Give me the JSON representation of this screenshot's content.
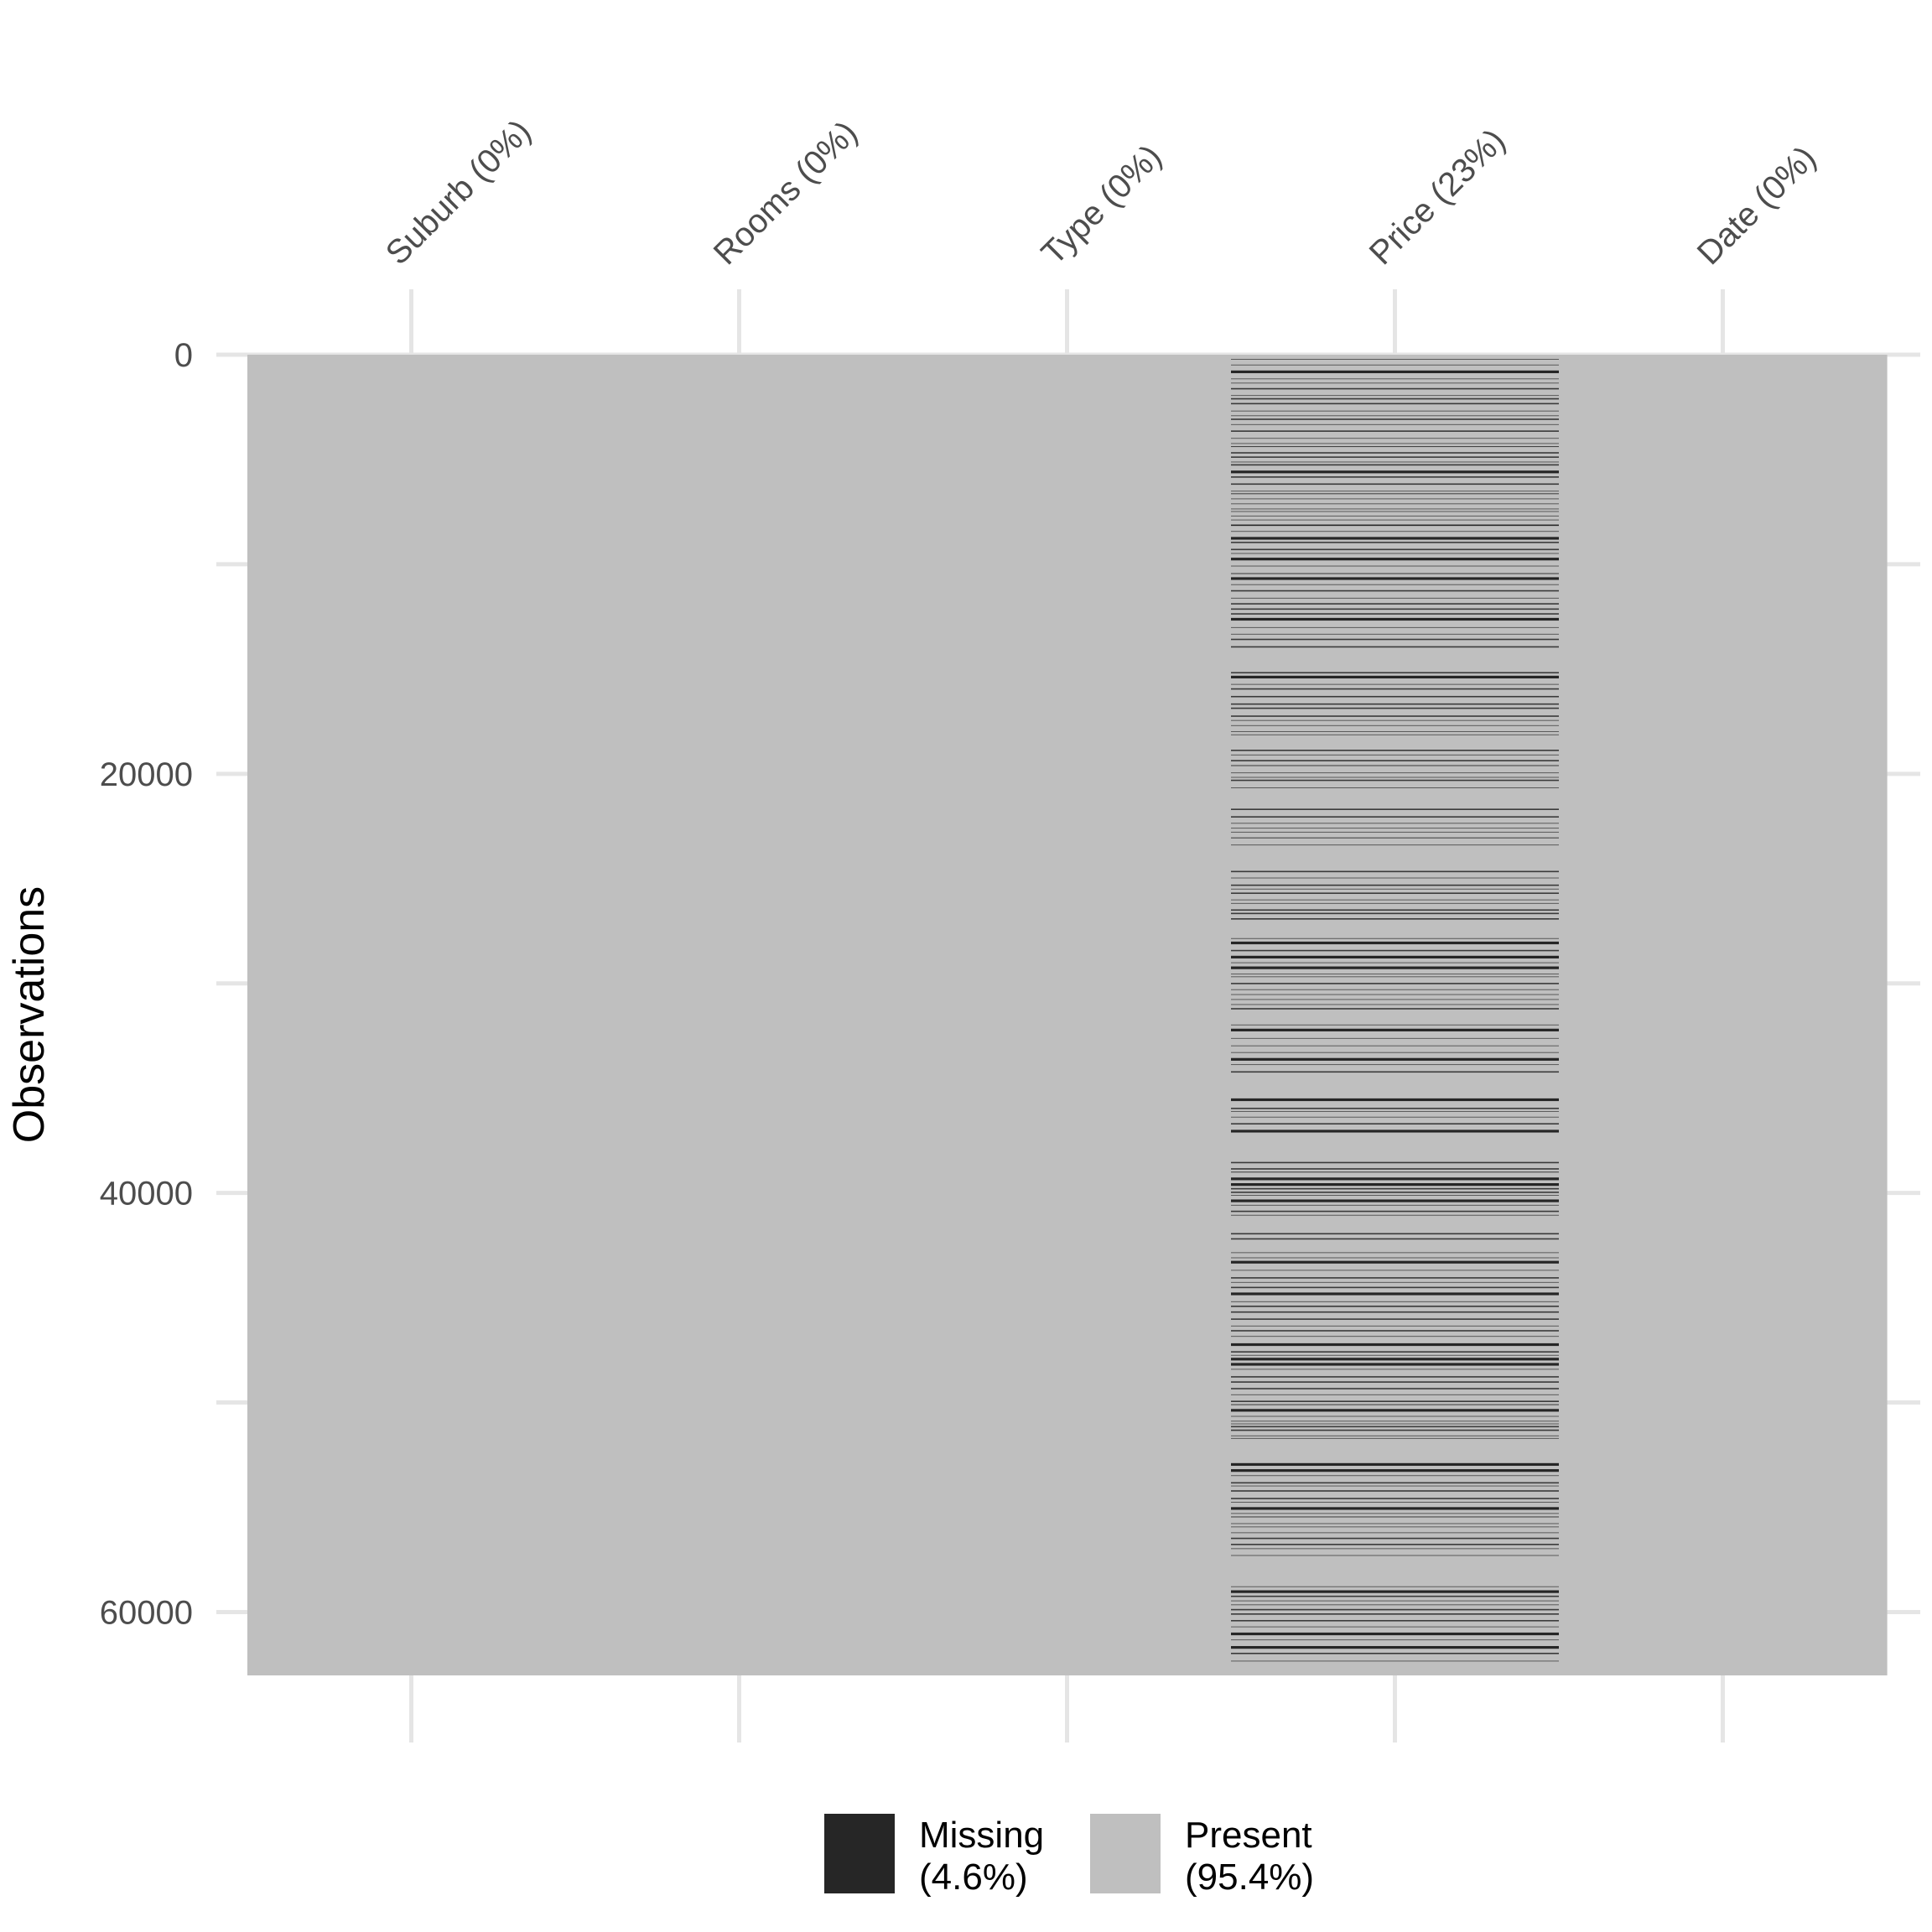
{
  "chart_data": {
    "type": "heatmap",
    "title": "",
    "xlabel": "",
    "ylabel": "Observations",
    "columns": [
      {
        "name": "Suburb",
        "label": "Suburb (0%)",
        "missing_pct": 0
      },
      {
        "name": "Rooms",
        "label": "Rooms (0%)",
        "missing_pct": 0
      },
      {
        "name": "Type",
        "label": "Type (0%)",
        "missing_pct": 0
      },
      {
        "name": "Price",
        "label": "Price (23%)",
        "missing_pct": 23
      },
      {
        "name": "Date",
        "label": "Date (0%)",
        "missing_pct": 0
      }
    ],
    "n_observations": 63023,
    "ylim": [
      0,
      63023
    ],
    "y_axis_reversed": true,
    "yticks": [
      0,
      20000,
      40000,
      60000
    ],
    "ytick_labels": [
      "0",
      "20000",
      "40000",
      "60000"
    ],
    "grid": true,
    "legend": {
      "position": "bottom",
      "items": [
        {
          "key": "missing",
          "line1": "Missing",
          "line2": "(4.6%)",
          "pct": 4.6,
          "color": "#262626"
        },
        {
          "key": "present",
          "line1": "Present",
          "line2": "(95.4%)",
          "pct": 95.4,
          "color": "#bfbfbf"
        }
      ]
    },
    "missing_column": "Price",
    "missing_row_pattern": {
      "approx_missing_rows": 14500,
      "pattern": "missing rows for Price are spread over all observations"
    }
  },
  "colors": {
    "present": "#bfbfbf",
    "missing": "#262626",
    "grid": "#e5e5e5",
    "background": "#ffffff"
  }
}
